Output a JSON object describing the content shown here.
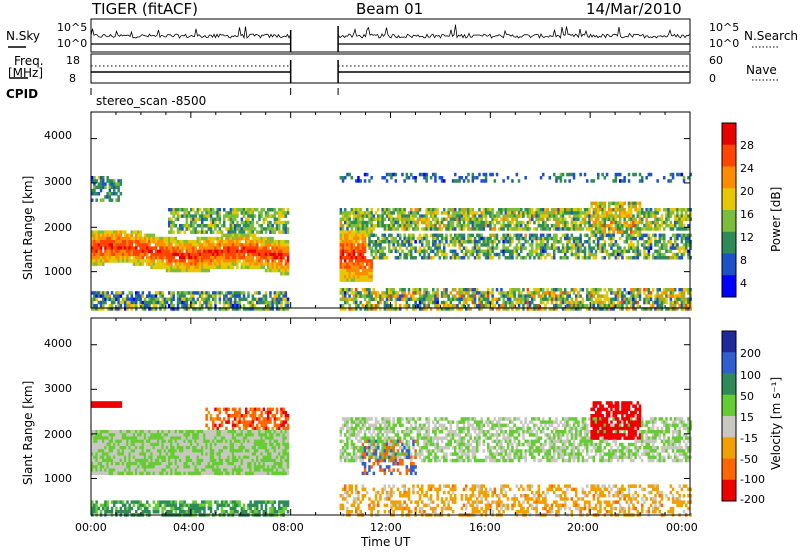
{
  "header": {
    "station": "TIGER (fitACF)",
    "beam": "Beam 01",
    "date": "14/Mar/2010"
  },
  "status_panel": {
    "nsky_label": "N.Sky",
    "nsky_ticks": [
      "10^5",
      "10^0"
    ],
    "nsearch_label": "N.Search",
    "nsearch_ticks": [
      "10^5",
      "10^0"
    ],
    "freq_label_1": "Freq.",
    "freq_label_2": "[MHz]",
    "freq_ticks": [
      "18",
      "8"
    ],
    "nave_label": "Nave",
    "nave_ticks": [
      "60",
      "0"
    ],
    "cpid_label": "CPID",
    "cpid_value": "stereo_scan -8500"
  },
  "chart_data": [
    {
      "type": "heatmap",
      "panel": "power",
      "ylabel": "Slant Range [km]",
      "yticks": [
        1000,
        2000,
        3000,
        4000
      ],
      "ylim": [
        180,
        4600
      ],
      "xlim": [
        0,
        24
      ],
      "data_gap_hours": [
        8.0,
        9.9
      ],
      "colorbar_label": "Power [dB]",
      "colorbar_ticks": [
        "28",
        "24",
        "20",
        "16",
        "12",
        "8",
        "4"
      ],
      "colorbar_colors": [
        "#0000ff",
        "#1e50c8",
        "#2e8b57",
        "#7cbd3c",
        "#e6c800",
        "#ff8c00",
        "#ff4500",
        "#e60000"
      ]
    },
    {
      "type": "heatmap",
      "panel": "velocity",
      "ylabel": "Slant Range [km]",
      "yticks": [
        1000,
        2000,
        3000,
        4000
      ],
      "ylim": [
        180,
        4600
      ],
      "xlim": [
        0,
        24
      ],
      "data_gap_hours": [
        8.0,
        9.9
      ],
      "colorbar_label": "Velocity [m s⁻¹]",
      "colorbar_ticks": [
        "200",
        "100",
        "50",
        "15",
        "-15",
        "-50",
        "-100",
        "-200"
      ],
      "colorbar_colors": [
        "#1e2a9c",
        "#2f5fd0",
        "#2e8b57",
        "#66cc33",
        "#c8c8c0",
        "#f0a000",
        "#ff6600",
        "#ee0000"
      ]
    }
  ],
  "xaxis": {
    "label": "Time UT",
    "ticks": [
      "00:00",
      "04:00",
      "08:00",
      "12:00",
      "16:00",
      "20:00",
      "00:00"
    ]
  }
}
